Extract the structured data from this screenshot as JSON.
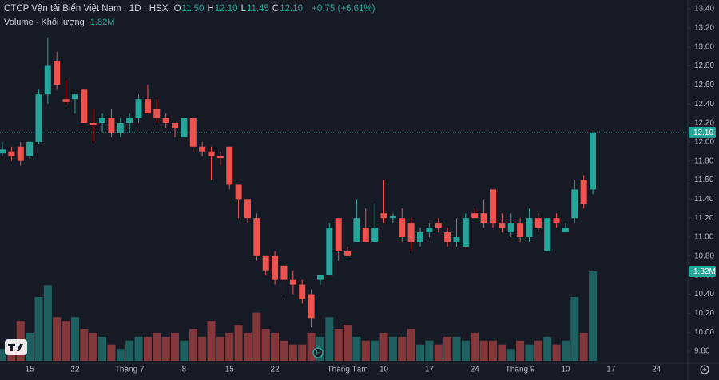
{
  "chart_data": {
    "type": "candlestick",
    "title": "CTCP Vận tải Biển Việt Nam · 1D · HSX",
    "ohlc_legend": [
      {
        "key": "O",
        "value": "11.50"
      },
      {
        "key": "H",
        "value": "12.10"
      },
      {
        "key": "L",
        "value": "11.45"
      },
      {
        "key": "C",
        "value": "12.10"
      }
    ],
    "change": "+0.75 (+6.61%)",
    "volume_title": "Volume - Khối lượng",
    "volume_label": "1.82M",
    "last_price_label": "12.10",
    "up_color": "#26a69a",
    "down_color": "#ef5350",
    "categories": [
      null,
      null,
      null,
      "15",
      null,
      null,
      null,
      null,
      "22",
      null,
      null,
      null,
      null,
      null,
      "Tháng 7",
      null,
      null,
      null,
      null,
      null,
      "8",
      null,
      null,
      null,
      null,
      "15",
      null,
      null,
      null,
      null,
      "22",
      null,
      null,
      null,
      null,
      null,
      null,
      null,
      "Tháng Tám",
      null,
      null,
      null,
      "10",
      null,
      null,
      null,
      null,
      "17",
      null,
      null,
      null,
      null,
      "24",
      null,
      null,
      null,
      null,
      "Tháng 9",
      null,
      null,
      null,
      null,
      "10",
      null,
      null,
      null,
      null,
      "17",
      null,
      null,
      null,
      null,
      "24",
      null
    ],
    "open": [
      11.88,
      11.9,
      11.95,
      11.85,
      12.0,
      12.5,
      12.85,
      12.45,
      12.45,
      12.55,
      12.2,
      12.2,
      12.25,
      12.1,
      12.2,
      12.25,
      12.45,
      12.35,
      12.25,
      12.2,
      12.05,
      12.25,
      11.95,
      11.9,
      11.85,
      11.95,
      11.55,
      11.4,
      11.2,
      10.8,
      10.8,
      10.7,
      10.55,
      10.5,
      10.4,
      10.55,
      10.6,
      11.2,
      10.85,
      10.95,
      11.1,
      10.95,
      11.25,
      11.2,
      11.2,
      11.15,
      10.95,
      11.05,
      11.15,
      11.05,
      10.95,
      10.9,
      11.25,
      11.25,
      11.5,
      11.15,
      11.05,
      11.15,
      11.0,
      11.2,
      10.85,
      11.2,
      11.05,
      11.2,
      11.6,
      11.5,
      null,
      null,
      null,
      null,
      null,
      null,
      null,
      null
    ],
    "high": [
      12.0,
      11.95,
      12.0,
      12.0,
      12.55,
      13.1,
      12.95,
      12.65,
      12.5,
      12.55,
      12.35,
      12.3,
      12.35,
      12.25,
      12.3,
      12.5,
      12.6,
      12.45,
      12.3,
      12.2,
      12.25,
      12.25,
      12.0,
      11.95,
      11.9,
      11.95,
      11.55,
      11.4,
      11.25,
      10.8,
      10.85,
      10.7,
      10.65,
      10.55,
      10.45,
      10.6,
      11.15,
      11.2,
      10.9,
      11.4,
      11.3,
      11.35,
      11.6,
      11.25,
      11.3,
      11.2,
      11.1,
      11.15,
      11.2,
      11.1,
      11.2,
      11.25,
      11.3,
      11.4,
      11.5,
      11.25,
      11.25,
      11.2,
      11.3,
      11.25,
      11.2,
      11.25,
      11.15,
      11.6,
      11.65,
      12.1,
      null,
      null,
      null,
      null,
      null,
      null,
      null,
      null
    ],
    "low": [
      11.85,
      11.8,
      11.75,
      11.82,
      11.98,
      12.4,
      12.55,
      12.4,
      12.3,
      12.2,
      12.0,
      12.1,
      12.05,
      12.05,
      12.1,
      12.2,
      12.3,
      12.2,
      12.15,
      12.05,
      12.05,
      11.9,
      11.85,
      11.6,
      11.75,
      11.5,
      11.2,
      11.15,
      10.75,
      10.6,
      10.5,
      10.35,
      10.4,
      10.3,
      10.05,
      10.5,
      10.6,
      10.75,
      10.8,
      10.95,
      10.95,
      10.95,
      11.15,
      11.15,
      10.95,
      10.85,
      10.9,
      11.0,
      11.05,
      10.9,
      10.9,
      10.9,
      11.2,
      11.1,
      11.1,
      11.05,
      11.0,
      10.95,
      10.95,
      11.05,
      10.85,
      11.1,
      11.05,
      11.15,
      11.3,
      11.45,
      null,
      null,
      null,
      null,
      null,
      null,
      null,
      null
    ],
    "close": [
      11.92,
      11.85,
      11.8,
      12.0,
      12.5,
      12.8,
      12.6,
      12.42,
      12.5,
      12.2,
      12.18,
      12.25,
      12.1,
      12.2,
      12.25,
      12.45,
      12.3,
      12.25,
      12.2,
      12.15,
      12.25,
      11.95,
      11.9,
      11.85,
      11.83,
      11.55,
      11.4,
      11.2,
      10.8,
      10.65,
      10.55,
      10.55,
      10.5,
      10.35,
      10.15,
      10.6,
      11.1,
      10.85,
      10.8,
      11.2,
      10.95,
      11.1,
      11.2,
      11.22,
      11.0,
      10.95,
      11.05,
      11.1,
      11.1,
      10.95,
      11.0,
      11.2,
      11.2,
      11.15,
      11.15,
      11.1,
      11.15,
      11.0,
      11.2,
      11.1,
      11.2,
      11.15,
      11.1,
      11.5,
      11.35,
      12.1,
      null,
      null,
      null,
      null,
      null,
      null,
      null,
      null
    ],
    "volume": [
      240000,
      410000,
      810000,
      570000,
      1300000,
      1540000,
      890000,
      810000,
      890000,
      650000,
      570000,
      490000,
      330000,
      240000,
      410000,
      490000,
      490000,
      570000,
      490000,
      570000,
      410000,
      650000,
      490000,
      810000,
      490000,
      570000,
      730000,
      570000,
      980000,
      650000,
      570000,
      410000,
      330000,
      330000,
      570000,
      490000,
      890000,
      650000,
      730000,
      490000,
      410000,
      410000,
      570000,
      490000,
      490000,
      650000,
      330000,
      410000,
      330000,
      490000,
      490000,
      410000,
      570000,
      410000,
      410000,
      330000,
      240000,
      410000,
      330000,
      410000,
      490000,
      330000,
      410000,
      1300000,
      570000,
      1820000,
      null,
      null,
      null,
      null,
      null,
      null,
      null,
      null
    ],
    "ylim": [
      9.8,
      13.4
    ],
    "yticks": [
      {
        "value": 9.8,
        "label": "9.80"
      },
      {
        "value": 10.0,
        "label": "10.00"
      },
      {
        "value": 10.2,
        "label": "10.20"
      },
      {
        "value": 10.4,
        "label": "10.40"
      },
      {
        "value": 10.6,
        "label": "10.60"
      },
      {
        "value": 10.8,
        "label": "10.80"
      },
      {
        "value": 11.0,
        "label": "11.00"
      },
      {
        "value": 11.2,
        "label": "11.20"
      },
      {
        "value": 11.4,
        "label": "11.40"
      },
      {
        "value": 11.6,
        "label": "11.60"
      },
      {
        "value": 11.8,
        "label": "11.80"
      },
      {
        "value": 12.0,
        "label": "12.00"
      },
      {
        "value": 12.2,
        "label": "12.20"
      },
      {
        "value": 12.4,
        "label": "12.40"
      },
      {
        "value": 12.6,
        "label": "12.60"
      },
      {
        "value": 12.8,
        "label": "12.80"
      },
      {
        "value": 13.0,
        "label": "13.00"
      },
      {
        "value": 13.2,
        "label": "13.20"
      },
      {
        "value": 13.4,
        "label": "13.40"
      }
    ]
  }
}
